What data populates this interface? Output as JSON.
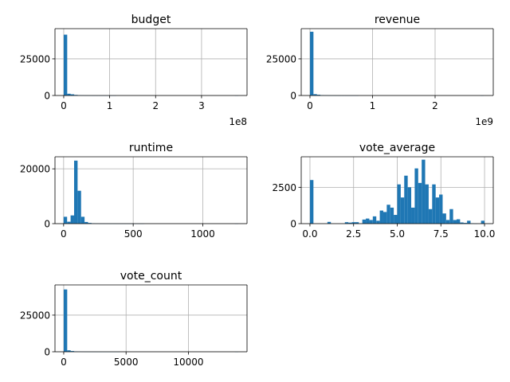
{
  "colors": {
    "bar": "#1f77b4",
    "grid": "#b0b0b0",
    "axis": "#000000",
    "background": "#ffffff"
  },
  "chart_data": [
    {
      "type": "bar",
      "title": "budget",
      "grid": true,
      "xlim": [
        -19000000,
        399000000
      ],
      "ylim": [
        0,
        45600
      ],
      "xticks": [
        {
          "v": 0,
          "label": "0"
        },
        {
          "v": 100000000,
          "label": "1"
        },
        {
          "v": 200000000,
          "label": "2"
        },
        {
          "v": 300000000,
          "label": "3"
        }
      ],
      "yticks": [
        {
          "v": 0,
          "label": "0"
        },
        {
          "v": 25000,
          "label": "25000"
        }
      ],
      "offset_text": "1e8",
      "bins": {
        "start": 0,
        "width": 7600000,
        "counts": [
          41500,
          1200,
          800,
          400,
          200,
          100,
          60,
          30,
          10,
          5,
          3,
          2,
          1,
          1,
          1,
          0,
          0,
          0,
          0,
          0,
          0,
          0,
          0,
          0,
          0,
          0,
          0,
          0,
          0,
          0,
          0,
          0,
          0,
          0,
          0,
          0,
          0,
          0,
          0,
          0,
          0,
          0,
          0,
          0,
          0,
          0,
          0,
          0,
          0,
          1
        ]
      }
    },
    {
      "type": "bar",
      "title": "revenue",
      "grid": true,
      "xlim": [
        -140000000,
        2930000000
      ],
      "ylim": [
        0,
        45600
      ],
      "xticks": [
        {
          "v": 0,
          "label": "0"
        },
        {
          "v": 1000000000,
          "label": "1"
        },
        {
          "v": 2000000000,
          "label": "2"
        }
      ],
      "yticks": [
        {
          "v": 0,
          "label": "0"
        },
        {
          "v": 25000,
          "label": "25000"
        }
      ],
      "offset_text": "1e9",
      "bins": {
        "start": 0,
        "width": 55600000,
        "counts": [
          43500,
          900,
          500,
          200,
          100,
          50,
          30,
          15,
          10,
          5,
          3,
          2,
          1,
          1,
          0,
          0,
          0,
          0,
          0,
          0,
          0,
          0,
          0,
          0,
          0,
          0,
          0,
          0,
          0,
          0,
          0,
          0,
          0,
          0,
          0,
          0,
          0,
          0,
          0,
          0,
          0,
          0,
          0,
          0,
          0,
          0,
          0,
          0,
          0,
          1
        ]
      }
    },
    {
      "type": "bar",
      "title": "runtime",
      "grid": true,
      "xlim": [
        -62,
        1318
      ],
      "ylim": [
        0,
        24400
      ],
      "xticks": [
        {
          "v": 0,
          "label": "0"
        },
        {
          "v": 500,
          "label": "500"
        },
        {
          "v": 1000,
          "label": "1000"
        }
      ],
      "yticks": [
        {
          "v": 0,
          "label": "0"
        },
        {
          "v": 20000,
          "label": "20000"
        }
      ],
      "offset_text": "",
      "bins": {
        "start": 0,
        "width": 25.1,
        "counts": [
          2500,
          700,
          3000,
          23000,
          12000,
          2500,
          600,
          250,
          120,
          60,
          30,
          20,
          15,
          10,
          8,
          5,
          4,
          3,
          2,
          2,
          1,
          1,
          1,
          0,
          0,
          0,
          0,
          0,
          0,
          0,
          0,
          0,
          0,
          0,
          0,
          0,
          0,
          0,
          0,
          0,
          0,
          0,
          0,
          0,
          0,
          0,
          0,
          0,
          0,
          1
        ]
      }
    },
    {
      "type": "bar",
      "title": "vote_average",
      "grid": true,
      "xlim": [
        -0.5,
        10.5
      ],
      "ylim": [
        0,
        4600
      ],
      "xticks": [
        {
          "v": 0,
          "label": "0.0"
        },
        {
          "v": 2.5,
          "label": "2.5"
        },
        {
          "v": 5,
          "label": "5.0"
        },
        {
          "v": 7.5,
          "label": "7.5"
        },
        {
          "v": 10,
          "label": "10.0"
        }
      ],
      "yticks": [
        {
          "v": 0,
          "label": "0"
        },
        {
          "v": 2500,
          "label": "2500"
        }
      ],
      "offset_text": "",
      "bins": {
        "start": 0,
        "width": 0.2,
        "counts": [
          3000,
          0,
          0,
          0,
          0,
          120,
          0,
          0,
          0,
          0,
          100,
          70,
          100,
          100,
          0,
          280,
          350,
          250,
          500,
          200,
          900,
          800,
          1300,
          1100,
          600,
          2700,
          1800,
          3300,
          2500,
          1100,
          3800,
          2800,
          4400,
          2700,
          1000,
          2700,
          1800,
          2000,
          700,
          250,
          1000,
          250,
          300,
          80,
          50,
          200,
          20,
          5,
          0,
          200
        ]
      }
    },
    {
      "type": "bar",
      "title": "vote_count",
      "grid": true,
      "xlim": [
        -700,
        14700
      ],
      "ylim": [
        0,
        45600
      ],
      "xticks": [
        {
          "v": 0,
          "label": "0"
        },
        {
          "v": 5000,
          "label": "5000"
        },
        {
          "v": 10000,
          "label": "10000"
        }
      ],
      "yticks": [
        {
          "v": 0,
          "label": "0"
        },
        {
          "v": 25000,
          "label": "25000"
        }
      ],
      "offset_text": "",
      "bins": {
        "start": 0,
        "width": 280,
        "counts": [
          42500,
          1000,
          500,
          250,
          150,
          80,
          50,
          30,
          20,
          15,
          10,
          5,
          3,
          2,
          1,
          1,
          0,
          0,
          0,
          0,
          0,
          0,
          0,
          0,
          0,
          0,
          0,
          0,
          0,
          0,
          0,
          0,
          0,
          0,
          0,
          0,
          0,
          0,
          0,
          0,
          0,
          0,
          0,
          0,
          0,
          0,
          0,
          0,
          0,
          1
        ]
      }
    }
  ]
}
